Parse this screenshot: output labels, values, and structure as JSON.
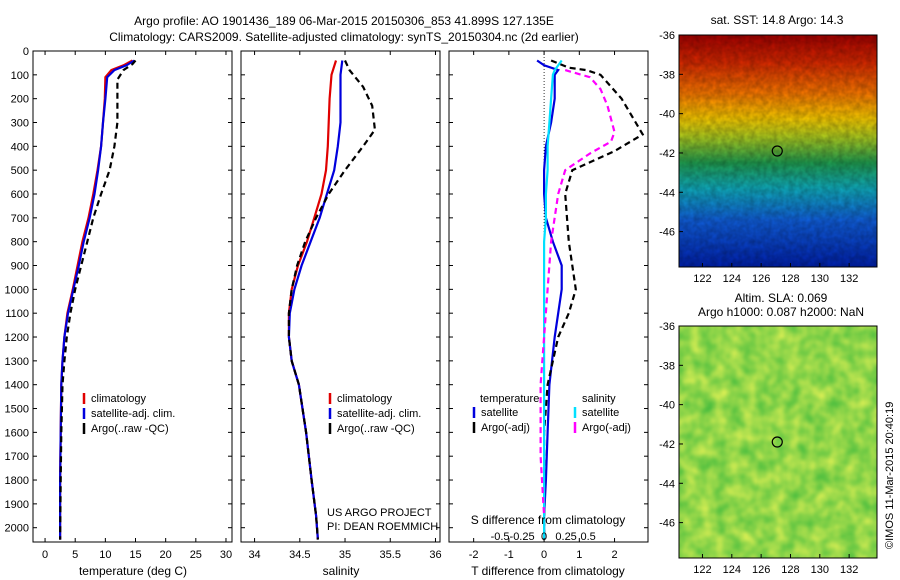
{
  "header": {
    "title_line1": "Argo profile: AO 1901436_189 06-Mar-2015 20150306_853 41.899S 127.135E",
    "title_line2": "Climatology: CARS2009. Satellite-adjusted climatology: synTS_20150304.nc (2d earlier)"
  },
  "colors": {
    "climatology": "#e00000",
    "satellite": "#0000dd",
    "argo": "#000000",
    "satellite_s": "#00e0ff",
    "argo_s": "#ff00ff"
  },
  "chart_data": [
    {
      "type": "line",
      "id": "temperature",
      "xlabel": "temperature (deg C)",
      "xlim": [
        -2,
        31
      ],
      "ylim": [
        2060,
        0
      ],
      "xticks": [
        0,
        5,
        10,
        15,
        20,
        25,
        30
      ],
      "yticks": [
        0,
        100,
        200,
        300,
        400,
        500,
        600,
        700,
        800,
        900,
        1000,
        1100,
        1200,
        1300,
        1400,
        1500,
        1600,
        1700,
        1800,
        1900,
        2000
      ],
      "legend": [
        "climatology",
        "satellite-adj. clim.",
        "Argo(..raw -QC)"
      ],
      "series": [
        {
          "name": "climatology",
          "color": "#e00000",
          "dash": "",
          "x": [
            14.5,
            13,
            11,
            10,
            9.9,
            9.6,
            9.3,
            8.7,
            8,
            7.2,
            6.2,
            5.4,
            4.6,
            3.7,
            3.2,
            2.9,
            2.7,
            2.6,
            2.5,
            2.5
          ],
          "y": [
            40,
            60,
            80,
            110,
            200,
            300,
            400,
            500,
            600,
            700,
            800,
            900,
            1000,
            1100,
            1200,
            1300,
            1400,
            1600,
            1800,
            2050
          ]
        },
        {
          "name": "satellite-adj. clim.",
          "color": "#0000dd",
          "dash": "",
          "x": [
            14.8,
            13.5,
            11.5,
            10.3,
            10,
            9.6,
            9.3,
            8.8,
            8.2,
            7.4,
            6.4,
            5.6,
            4.7,
            3.8,
            3.2,
            2.9,
            2.7,
            2.6,
            2.5,
            2.5
          ],
          "y": [
            40,
            60,
            80,
            110,
            200,
            300,
            400,
            500,
            600,
            700,
            800,
            900,
            1000,
            1100,
            1200,
            1300,
            1400,
            1600,
            1800,
            2050
          ]
        },
        {
          "name": "Argo(..raw -QC)",
          "color": "#000000",
          "dash": "6,4",
          "x": [
            15,
            14.5,
            13,
            12,
            12,
            12,
            11.8,
            11.5,
            10.7,
            9.3,
            8,
            7,
            6,
            5,
            4.2,
            3.6,
            3.2,
            2.9,
            2.7,
            2.6,
            2.5
          ],
          "y": [
            40,
            55,
            80,
            120,
            200,
            300,
            340,
            400,
            500,
            600,
            700,
            800,
            900,
            1000,
            1100,
            1200,
            1300,
            1400,
            1600,
            1800,
            2050
          ]
        }
      ]
    },
    {
      "type": "line",
      "id": "salinity",
      "xlabel": "salinity",
      "xlim": [
        33.85,
        36.05
      ],
      "ylim": [
        2060,
        0
      ],
      "xticks": [
        34,
        34.5,
        35,
        35.5,
        36
      ],
      "legend": [
        "climatology",
        "satellite-adj. clim.",
        "Argo(..raw -QC)"
      ],
      "annotation": [
        "US ARGO PROJECT",
        "PI: DEAN ROEMMICH"
      ],
      "series": [
        {
          "name": "climatology",
          "color": "#e00000",
          "dash": "",
          "x": [
            34.9,
            34.85,
            34.83,
            34.82,
            34.81,
            34.79,
            34.74,
            34.66,
            34.58,
            34.48,
            34.41,
            34.38,
            34.38,
            34.41,
            34.49,
            34.57,
            34.63,
            34.68,
            34.7
          ],
          "y": [
            40,
            100,
            200,
            300,
            400,
            500,
            600,
            700,
            800,
            900,
            1000,
            1100,
            1200,
            1300,
            1400,
            1600,
            1800,
            1950,
            2050
          ]
        },
        {
          "name": "satellite-adj. clim.",
          "color": "#0000dd",
          "dash": "",
          "x": [
            34.97,
            34.95,
            34.95,
            34.95,
            34.92,
            34.88,
            34.8,
            34.72,
            34.62,
            34.52,
            34.44,
            34.39,
            34.38,
            34.41,
            34.49,
            34.57,
            34.63,
            34.68,
            34.7
          ],
          "y": [
            40,
            100,
            200,
            300,
            400,
            500,
            600,
            700,
            800,
            900,
            1000,
            1100,
            1200,
            1300,
            1400,
            1600,
            1800,
            1950,
            2050
          ]
        },
        {
          "name": "Argo(..raw -QC)",
          "color": "#000000",
          "dash": "6,4",
          "x": [
            35,
            35.05,
            35.2,
            35.3,
            35.33,
            35.2,
            35.0,
            34.82,
            34.68,
            34.56,
            34.47,
            34.41,
            34.38,
            34.38,
            34.41,
            34.49,
            34.57,
            34.63,
            34.68,
            34.7
          ],
          "y": [
            40,
            80,
            150,
            230,
            330,
            400,
            500,
            600,
            700,
            800,
            900,
            1000,
            1100,
            1200,
            1300,
            1400,
            1600,
            1800,
            1950,
            2050
          ]
        }
      ]
    },
    {
      "type": "line",
      "id": "differences",
      "xlabel": "T difference from climatology",
      "top_label": "S difference from climatology",
      "xlim": [
        -2.7,
        2.95
      ],
      "ylim": [
        2060,
        0
      ],
      "xticks": [
        -2,
        -1,
        0,
        1,
        2
      ],
      "s_xticks": [
        -0.5,
        -0.25,
        0,
        0.25,
        0.5
      ],
      "legend_temperature": {
        "title": "temperature",
        "entries": [
          "satellite",
          "Argo(-adj)"
        ]
      },
      "legend_salinity": {
        "title": "salinity",
        "entries": [
          "satellite",
          "Argo(-adj)"
        ]
      },
      "series": [
        {
          "name": "temperature satellite",
          "color": "#0000dd",
          "dash": "",
          "x": [
            -0.2,
            0,
            0.4,
            0.3,
            0.3,
            0.2,
            0.05,
            0,
            0,
            0.05,
            0.25,
            0.5,
            0.5,
            0.4,
            0.3,
            0.15,
            0.1,
            0.05,
            0,
            0
          ],
          "y": [
            40,
            60,
            80,
            100,
            200,
            300,
            400,
            500,
            600,
            700,
            800,
            900,
            1000,
            1100,
            1200,
            1400,
            1600,
            1800,
            1950,
            2050
          ]
        },
        {
          "name": "temperature Argo(-adj)",
          "color": "#000000",
          "dash": "6,4",
          "x": [
            0.2,
            0.7,
            1.2,
            1.6,
            2.2,
            2.6,
            2.8,
            2.0,
            0.8,
            0.6,
            0.7,
            0.8,
            0.9,
            0.7,
            0.4,
            0.1,
            0,
            0,
            0
          ],
          "y": [
            40,
            70,
            80,
            100,
            200,
            300,
            350,
            420,
            500,
            600,
            800,
            900,
            1000,
            1100,
            1200,
            1400,
            1600,
            1800,
            2050
          ]
        },
        {
          "name": "salinity satellite",
          "color": "#00e0ff",
          "dash": "",
          "x": [
            0.5,
            0.3,
            0.25,
            0.2,
            0.15,
            0.1,
            0.1,
            0.05,
            0.05,
            0,
            0,
            0,
            0,
            0,
            0
          ],
          "y": [
            40,
            80,
            100,
            200,
            300,
            400,
            500,
            600,
            700,
            800,
            1000,
            1200,
            1400,
            1700,
            2050
          ]
        },
        {
          "name": "salinity Argo(-adj)",
          "color": "#ff00ff",
          "dash": "6,4",
          "x": [
            0.6,
            1.3,
            1.6,
            1.8,
            2.0,
            1.9,
            1.3,
            0.6,
            0.4,
            0.2,
            0.1,
            0,
            -0.1,
            -0.1,
            0
          ],
          "y": [
            80,
            110,
            160,
            230,
            340,
            380,
            430,
            500,
            600,
            800,
            1000,
            1200,
            1400,
            1700,
            1950
          ]
        }
      ]
    },
    {
      "type": "heatmap",
      "id": "sst_map",
      "title": "sat. SST: 14.8 Argo: 14.3",
      "xlim": [
        120.4,
        133.9
      ],
      "ylim": [
        -47.8,
        -36
      ],
      "xticks": [
        122,
        124,
        126,
        128,
        130,
        132
      ],
      "yticks": [
        -36,
        -38,
        -40,
        -42,
        -44,
        -46
      ],
      "marker": {
        "lon": 127.1,
        "lat": -41.9
      }
    },
    {
      "type": "heatmap",
      "id": "sla_map",
      "title_line1": "Altim. SLA: 0.069",
      "title_line2": "Argo h1000: 0.087 h2000: NaN",
      "xlim": [
        120.4,
        133.9
      ],
      "ylim": [
        -47.8,
        -36
      ],
      "xticks": [
        122,
        124,
        126,
        128,
        130,
        132
      ],
      "yticks": [
        -36,
        -38,
        -40,
        -42,
        -44,
        -46
      ],
      "marker": {
        "lon": 127.1,
        "lat": -41.9
      }
    }
  ],
  "footer": {
    "credit": "©IMOS 11-Mar-2015 20:40:19"
  }
}
